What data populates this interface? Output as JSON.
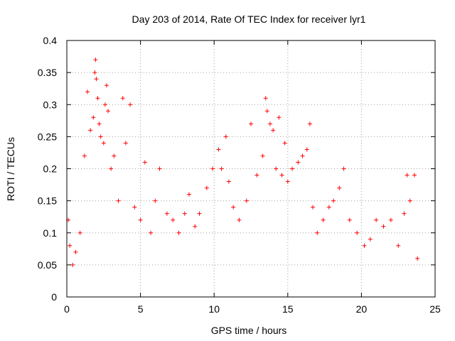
{
  "chart_data": {
    "type": "scatter",
    "title": "Day 203 of 2014, Rate Of TEC Index for receiver lyr1",
    "xlabel": "GPS time / hours",
    "ylabel": "ROTI / TECUs",
    "xlim": [
      0,
      25
    ],
    "ylim": [
      0,
      0.4
    ],
    "xticks": [
      0,
      5,
      10,
      15,
      20,
      25
    ],
    "xtick_labels": [
      "0",
      "5",
      "10",
      "15",
      "20",
      "25"
    ],
    "yticks": [
      0,
      0.05,
      0.1,
      0.15,
      0.2,
      0.25,
      0.3,
      0.35,
      0.4
    ],
    "ytick_labels": [
      "0",
      "0.05",
      "0.1",
      "0.15",
      "0.2",
      "0.25",
      "0.3",
      "0.35",
      "0.4"
    ],
    "grid": true,
    "marker": "+",
    "color": "#ff0000",
    "series": [
      {
        "name": "ROTI",
        "points": [
          [
            0.1,
            0.12
          ],
          [
            0.2,
            0.08
          ],
          [
            0.4,
            0.05
          ],
          [
            0.6,
            0.07
          ],
          [
            0.9,
            0.1
          ],
          [
            1.2,
            0.22
          ],
          [
            1.4,
            0.32
          ],
          [
            1.6,
            0.26
          ],
          [
            1.8,
            0.28
          ],
          [
            1.9,
            0.35
          ],
          [
            1.95,
            0.37
          ],
          [
            2.0,
            0.34
          ],
          [
            2.1,
            0.31
          ],
          [
            2.2,
            0.27
          ],
          [
            2.3,
            0.25
          ],
          [
            2.5,
            0.24
          ],
          [
            2.6,
            0.3
          ],
          [
            2.7,
            0.33
          ],
          [
            2.8,
            0.29
          ],
          [
            3.0,
            0.2
          ],
          [
            3.2,
            0.22
          ],
          [
            3.5,
            0.15
          ],
          [
            3.8,
            0.31
          ],
          [
            4.0,
            0.24
          ],
          [
            4.3,
            0.3
          ],
          [
            4.6,
            0.14
          ],
          [
            5.0,
            0.12
          ],
          [
            5.3,
            0.21
          ],
          [
            5.7,
            0.1
          ],
          [
            6.0,
            0.15
          ],
          [
            6.3,
            0.2
          ],
          [
            6.8,
            0.13
          ],
          [
            7.2,
            0.12
          ],
          [
            7.6,
            0.1
          ],
          [
            8.0,
            0.13
          ],
          [
            8.3,
            0.16
          ],
          [
            8.7,
            0.11
          ],
          [
            9.0,
            0.13
          ],
          [
            9.5,
            0.17
          ],
          [
            9.9,
            0.2
          ],
          [
            10.3,
            0.23
          ],
          [
            10.5,
            0.2
          ],
          [
            10.8,
            0.25
          ],
          [
            11.0,
            0.18
          ],
          [
            11.3,
            0.14
          ],
          [
            11.7,
            0.12
          ],
          [
            12.2,
            0.15
          ],
          [
            12.5,
            0.27
          ],
          [
            12.9,
            0.19
          ],
          [
            13.3,
            0.22
          ],
          [
            13.5,
            0.31
          ],
          [
            13.6,
            0.29
          ],
          [
            13.8,
            0.27
          ],
          [
            14.0,
            0.26
          ],
          [
            14.2,
            0.2
          ],
          [
            14.4,
            0.28
          ],
          [
            14.6,
            0.19
          ],
          [
            14.8,
            0.24
          ],
          [
            15.0,
            0.18
          ],
          [
            15.3,
            0.2
          ],
          [
            15.7,
            0.21
          ],
          [
            16.0,
            0.22
          ],
          [
            16.3,
            0.23
          ],
          [
            16.5,
            0.27
          ],
          [
            16.7,
            0.14
          ],
          [
            17.0,
            0.1
          ],
          [
            17.4,
            0.12
          ],
          [
            17.8,
            0.14
          ],
          [
            18.1,
            0.15
          ],
          [
            18.5,
            0.17
          ],
          [
            18.8,
            0.2
          ],
          [
            19.2,
            0.12
          ],
          [
            19.7,
            0.1
          ],
          [
            20.2,
            0.08
          ],
          [
            20.6,
            0.09
          ],
          [
            21.0,
            0.12
          ],
          [
            21.5,
            0.11
          ],
          [
            22.0,
            0.12
          ],
          [
            22.5,
            0.08
          ],
          [
            22.9,
            0.13
          ],
          [
            23.1,
            0.19
          ],
          [
            23.3,
            0.15
          ],
          [
            23.6,
            0.19
          ],
          [
            23.8,
            0.06
          ]
        ]
      }
    ]
  }
}
